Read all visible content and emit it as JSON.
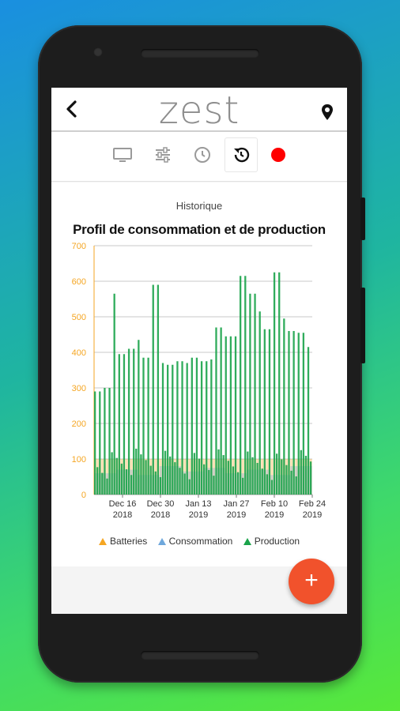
{
  "app": {
    "logo": "zest"
  },
  "toolbar": {
    "tabs": [
      {
        "icon": "monitor-icon"
      },
      {
        "icon": "sliders-icon"
      },
      {
        "icon": "clock-icon"
      },
      {
        "icon": "history-icon",
        "active": true
      },
      {
        "icon": "record-icon"
      }
    ]
  },
  "card": {
    "label": "Historique"
  },
  "chart_data": {
    "type": "bar",
    "title": "Profil de consommation et de production",
    "ylim": [
      0,
      700
    ],
    "yticks": [
      0,
      100,
      200,
      300,
      400,
      500,
      600,
      700
    ],
    "xticks": [
      {
        "label": "Dec 16",
        "sub": "2018"
      },
      {
        "label": "Dec 30",
        "sub": "2018"
      },
      {
        "label": "Jan 13",
        "sub": "2019"
      },
      {
        "label": "Jan 27",
        "sub": "2019"
      },
      {
        "label": "Feb 10",
        "sub": "2019"
      },
      {
        "label": "Feb 24",
        "sub": "2019"
      }
    ],
    "grid": true,
    "legend_position": "bottom",
    "series": [
      {
        "name": "Batteries",
        "color": "#f5a623",
        "values": [
          100,
          100,
          100,
          100,
          100,
          100,
          100,
          100,
          100,
          100
        ]
      },
      {
        "name": "Consommation",
        "color": "#6fa8dc",
        "values": [
          60,
          70,
          55,
          80,
          65,
          75,
          60,
          70,
          55,
          80
        ]
      },
      {
        "name": "Production",
        "color": "#1aa34a",
        "values": [
          290,
          300,
          565,
          395,
          410,
          435,
          385,
          590,
          370,
          365,
          375,
          370,
          385,
          375,
          380,
          470,
          445,
          445,
          615,
          565,
          515,
          465,
          625,
          495,
          460,
          455,
          415
        ]
      }
    ]
  },
  "fab": {
    "label": "+"
  }
}
